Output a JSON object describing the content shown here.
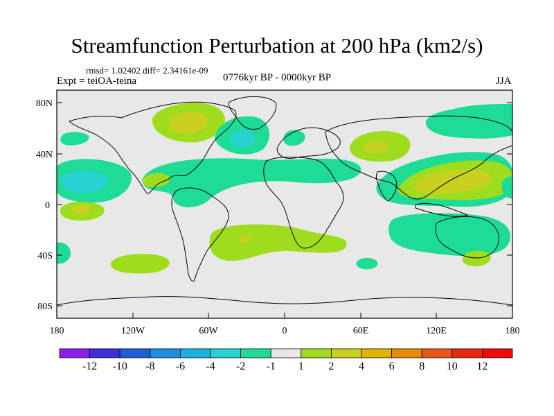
{
  "title": "Streamfunction Perturbation at 200 hPa (km2/s)",
  "stats": "rmsd= 1.02402 diff= 2.34161e-09",
  "experiment": "Expt = teiOA-teina",
  "period": "0776kyr BP - 0000kyr BP",
  "season": "JJA",
  "lat_labels": [
    "80N",
    "40N",
    "0",
    "40S",
    "80S"
  ],
  "lon_labels": [
    "180",
    "120W",
    "60W",
    "0",
    "60E",
    "120E",
    "180"
  ],
  "colorbar": {
    "labels": [
      "-12",
      "-10",
      "-8",
      "-6",
      "-4",
      "-2",
      "-1",
      "1",
      "2",
      "4",
      "6",
      "8",
      "10",
      "12"
    ],
    "colors": [
      "#8c1eea",
      "#3d2ed8",
      "#1f5fd6",
      "#1c8ee0",
      "#1cb0e0",
      "#26d2d2",
      "#1edc96",
      "#e8e8e8",
      "#9fdc1e",
      "#c8d020",
      "#e0b400",
      "#e88a0a",
      "#e8561a",
      "#e82a12",
      "#f00a0a"
    ]
  },
  "map": {
    "background": "#e8e8e8",
    "anomaly_fields": [
      {
        "region": "arctic-canada",
        "level": 2
      },
      {
        "region": "arctic-canada-core",
        "level": 4
      },
      {
        "region": "north-atlantic-low",
        "level": -2
      },
      {
        "region": "north-atlantic-core",
        "level": -4
      },
      {
        "region": "central-asia-high",
        "level": 2
      },
      {
        "region": "central-asia-core",
        "level": 4
      },
      {
        "region": "north-pacific-west",
        "level": 1
      },
      {
        "region": "north-pacific-core",
        "level": -2
      },
      {
        "region": "eastern-pacific-tropics",
        "level": -2
      },
      {
        "region": "eastern-pacific-core",
        "level": -4
      },
      {
        "region": "tropical-atlantic",
        "level": -1
      },
      {
        "region": "west-pacific-high",
        "level": 2
      },
      {
        "region": "west-pacific-core",
        "level": 4
      },
      {
        "region": "south-atlantic",
        "level": 2
      },
      {
        "region": "south-atlantic-core",
        "level": 4
      },
      {
        "region": "south-pacific",
        "level": 2
      },
      {
        "region": "south-pacific-core",
        "level": 4
      }
    ]
  }
}
